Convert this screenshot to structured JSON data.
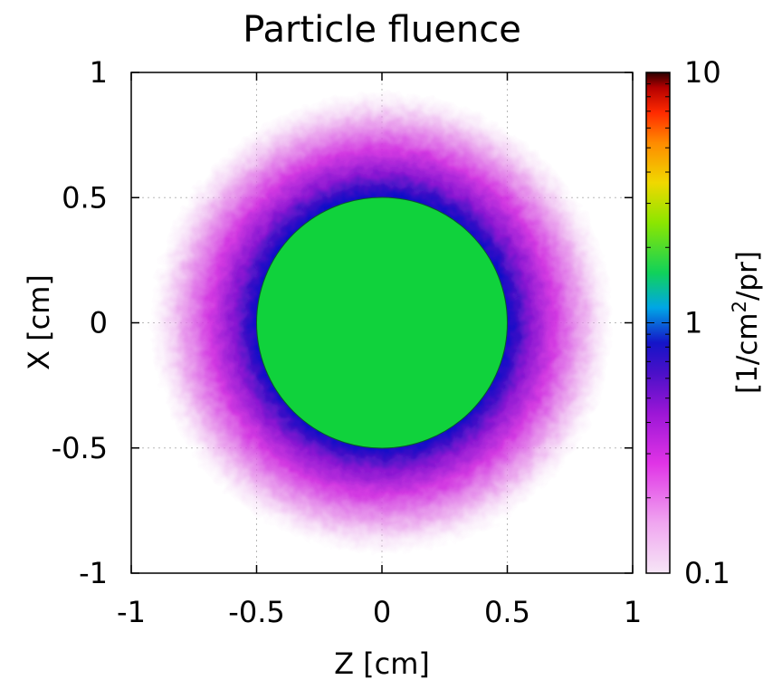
{
  "chart_data": {
    "type": "heatmap",
    "title": "Particle fluence",
    "xlabel": "Z [cm]",
    "ylabel": "X [cm]",
    "colorbar_label_base": "[1/cm",
    "colorbar_label_sup": "2",
    "colorbar_label_tail": "/pr]",
    "xlim": [
      -1,
      1
    ],
    "ylim": [
      -1,
      1
    ],
    "x_ticks": [
      "-1",
      "-0.5",
      "0",
      "0.5",
      "1"
    ],
    "y_ticks": [
      "-1",
      "-0.5",
      "0",
      "0.5",
      "1"
    ],
    "colorbar_range": [
      0.1,
      10
    ],
    "colorbar_scale": "log",
    "colorbar_ticks": [
      "0.1",
      "1",
      "10"
    ],
    "grid": true,
    "core": {
      "radius_cm": 0.5,
      "value": 1.5
    },
    "halo_profile": [
      {
        "r_cm": 0.5,
        "value": 0.55
      },
      {
        "r_cm": 0.54,
        "value": 0.35
      },
      {
        "r_cm": 0.6,
        "value": 0.26
      },
      {
        "r_cm": 0.7,
        "value": 0.18
      },
      {
        "r_cm": 0.8,
        "value": 0.13
      },
      {
        "r_cm": 0.92,
        "value": 0.1
      }
    ]
  }
}
